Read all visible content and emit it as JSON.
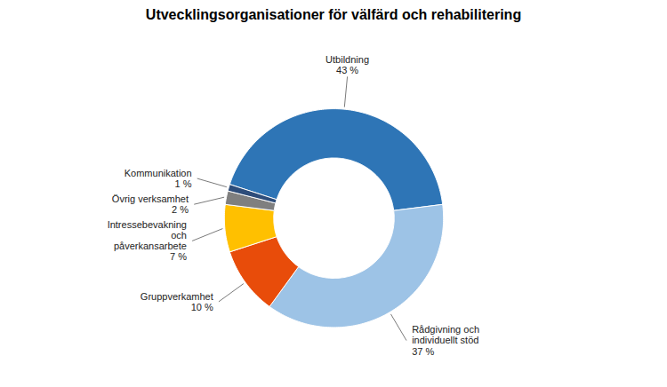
{
  "chart_data": {
    "type": "pie",
    "title": "Utvecklingsorganisationer för välfärd och rehabilitering",
    "categories": [
      "Utbildning",
      "Rådgivning och\nindividuellt stöd",
      "Gruppverkamhet",
      "Intressebevakning\noch\npåverkansarbete",
      "Övrig verksamhet",
      "Kommunikation"
    ],
    "values": [
      43,
      37,
      10,
      7,
      2,
      1
    ],
    "value_labels": [
      "43 %",
      "37 %",
      "10 %",
      "7 %",
      "2 %",
      "1 %"
    ],
    "data_labels": true,
    "colors": [
      "#2E75B6",
      "#9DC3E6",
      "#E84C0A",
      "#FFC000",
      "#7F7F7F",
      "#2E4D7A"
    ]
  }
}
